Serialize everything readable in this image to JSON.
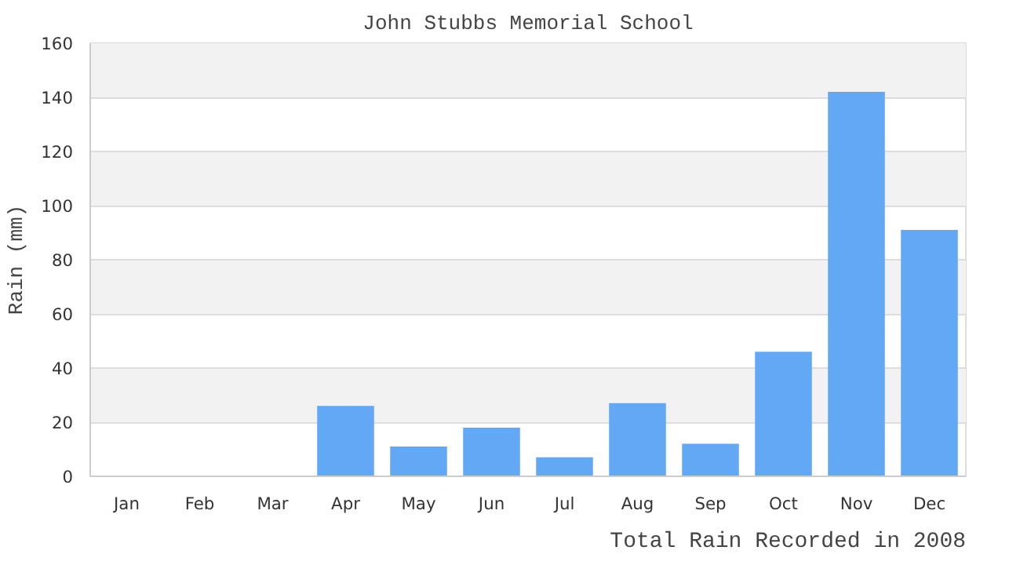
{
  "chart_data": {
    "type": "bar",
    "title": "John Stubbs Memorial School",
    "xlabel": "Total Rain Recorded in 2008",
    "ylabel": "Rain (mm)",
    "categories": [
      "Jan",
      "Feb",
      "Mar",
      "Apr",
      "May",
      "Jun",
      "Jul",
      "Aug",
      "Sep",
      "Oct",
      "Nov",
      "Dec"
    ],
    "values": [
      0,
      0,
      0,
      26,
      11,
      18,
      7,
      27,
      12,
      46,
      142,
      91
    ],
    "color": "#62a8f5",
    "ylim": [
      0,
      160
    ],
    "yticks": [
      0,
      20,
      40,
      60,
      80,
      100,
      120,
      140,
      160
    ],
    "grid": "y"
  }
}
